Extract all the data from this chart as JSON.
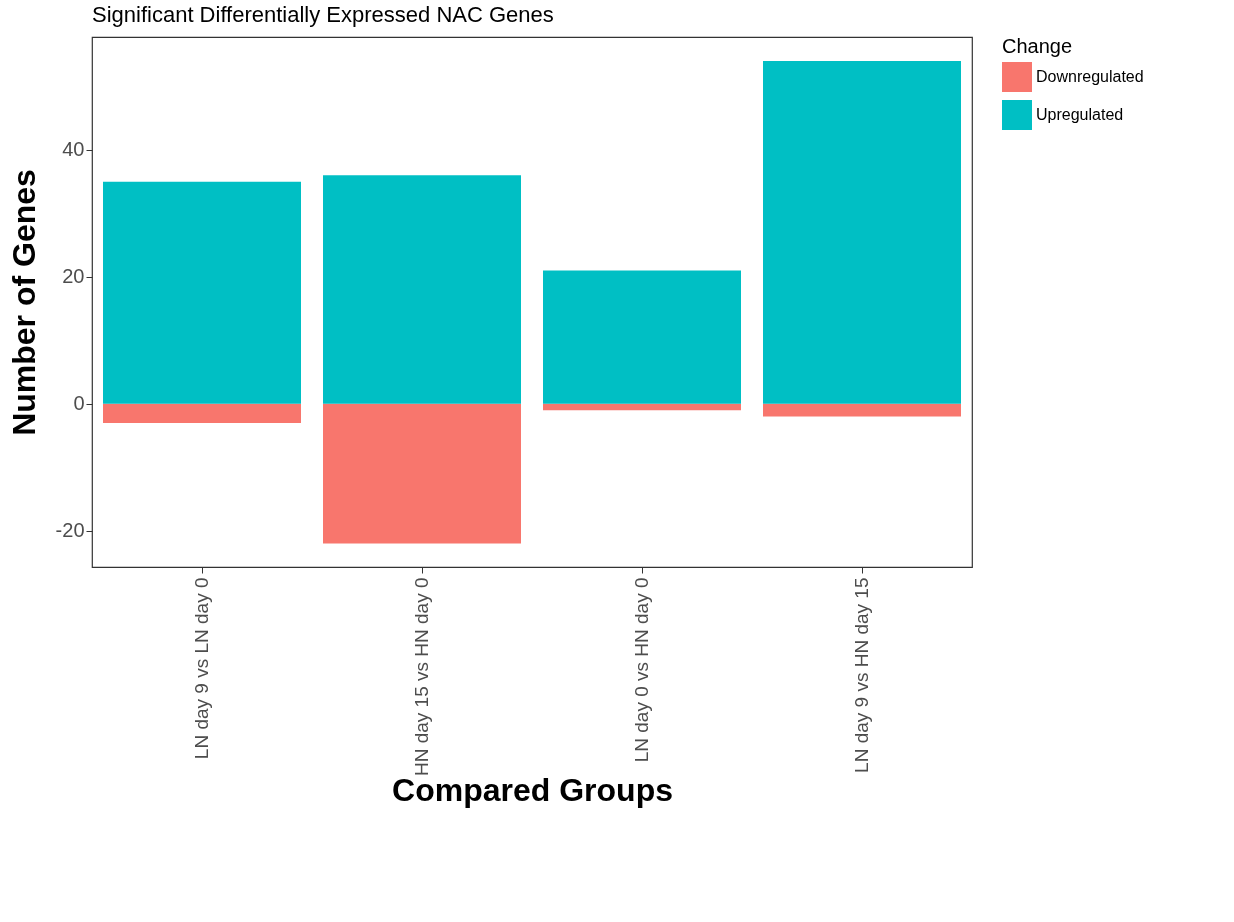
{
  "chart_data": {
    "type": "bar",
    "title": "Significant Differentially Expressed NAC Genes",
    "xlabel": "Compared Groups",
    "ylabel": "Number of Genes",
    "legend_title": "Change",
    "categories": [
      "LN day 9 vs LN day 0",
      "HN day 15 vs HN day 0",
      "LN day 0 vs HN day 0",
      "LN day 9 vs HN day 15"
    ],
    "series": [
      {
        "name": "Downregulated",
        "color": "#f8766d",
        "values": [
          -3,
          -22,
          -1,
          -2
        ]
      },
      {
        "name": "Upregulated",
        "color": "#00bfc4",
        "values": [
          35,
          36,
          21,
          54
        ]
      }
    ],
    "stacked": true,
    "ylim": [
      -25.7,
      57.8
    ],
    "yticks": [
      -20,
      0,
      20,
      40
    ],
    "grid": false,
    "legend": "right"
  }
}
